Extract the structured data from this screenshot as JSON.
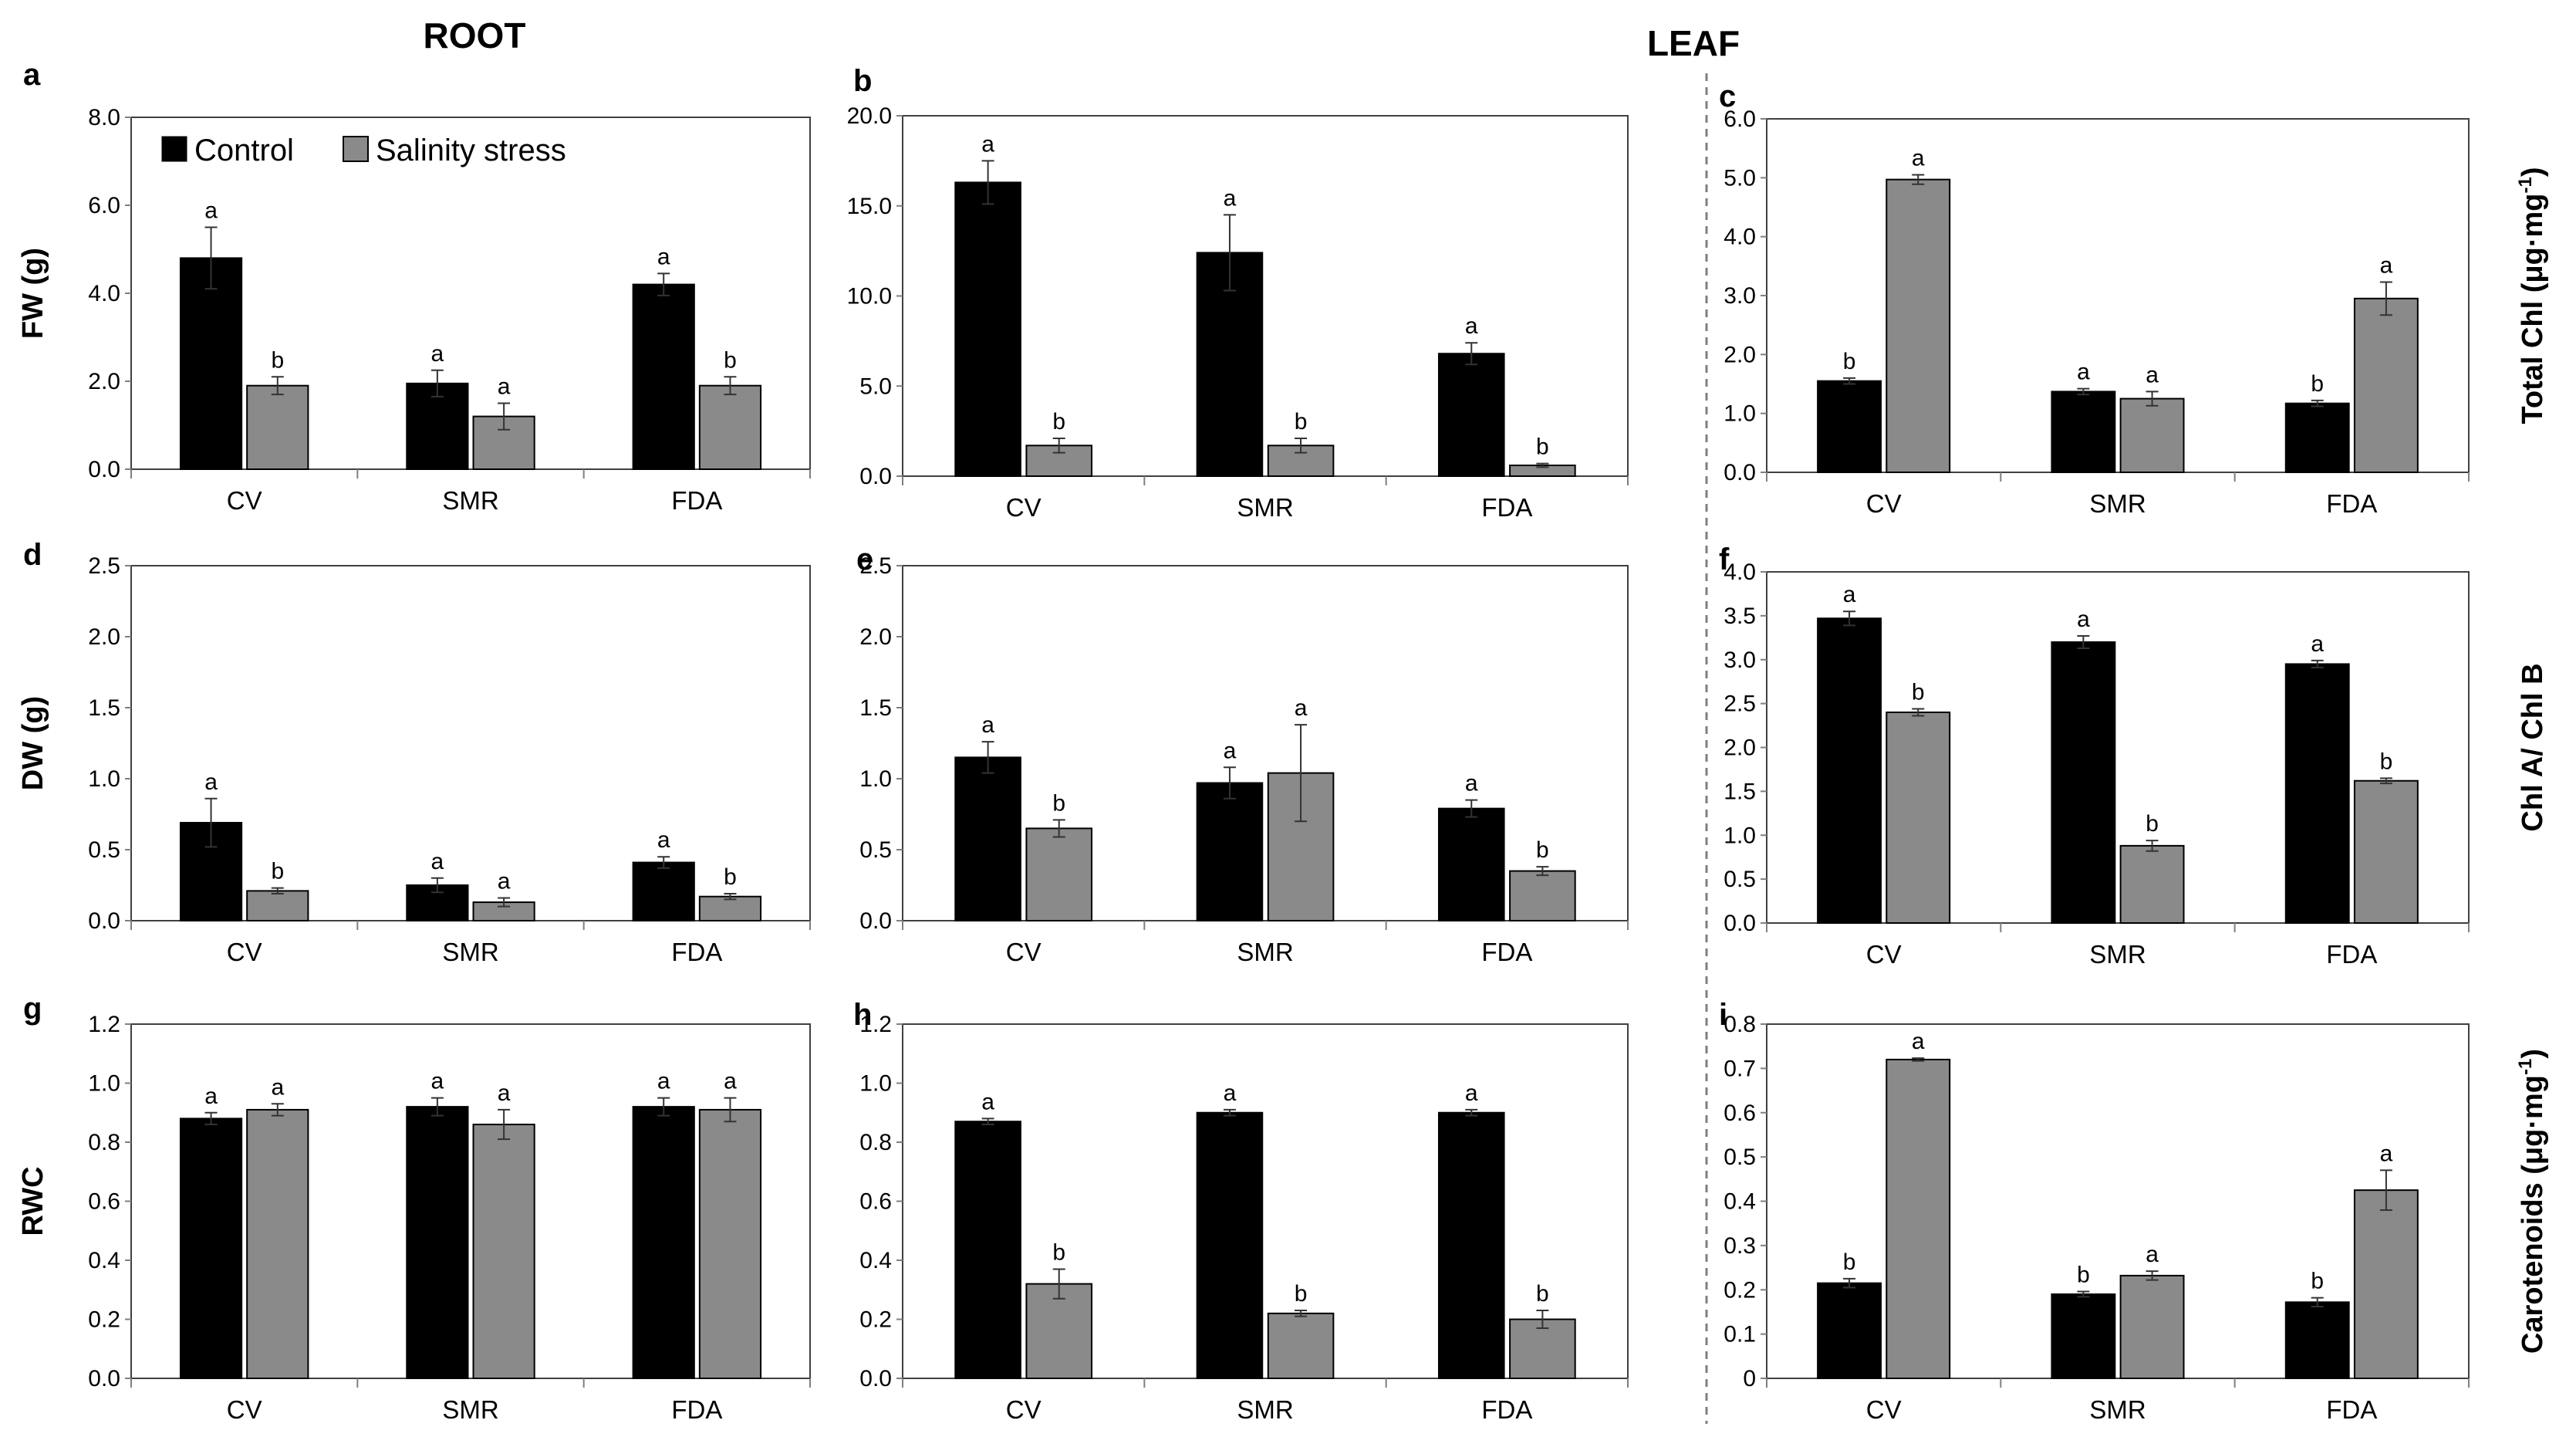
{
  "headers": {
    "root": "ROOT",
    "leaf": "LEAF"
  },
  "legend": {
    "control": "Control",
    "salinity": "Salinity stress"
  },
  "colors": {
    "control": "#000000",
    "salinity": "#8a8a8a",
    "axis": "#7f7f7f",
    "frame": "#404040"
  },
  "chart_data": [
    {
      "id": "a",
      "type": "bar",
      "letter": "a",
      "ylabel": "FW (g)",
      "ylabel_sup": "",
      "ylabel_side": "left",
      "ylim": [
        0,
        8
      ],
      "yticks": [
        "0.0",
        "2.0",
        "4.0",
        "6.0",
        "8.0"
      ],
      "categories": [
        "CV",
        "SMR",
        "FDA"
      ],
      "series": [
        {
          "name": "Control",
          "values": [
            4.8,
            1.95,
            4.2
          ],
          "errors": [
            0.7,
            0.3,
            0.25
          ],
          "sig": [
            "a",
            "a",
            "a"
          ]
        },
        {
          "name": "Salinity stress",
          "values": [
            1.9,
            1.2,
            1.9
          ],
          "errors": [
            0.2,
            0.3,
            0.2
          ],
          "sig": [
            "b",
            "a",
            "b"
          ]
        }
      ]
    },
    {
      "id": "b",
      "type": "bar",
      "letter": "b",
      "ylabel": "",
      "ylabel_sup": "",
      "ylabel_side": "left",
      "ylim": [
        0,
        20
      ],
      "yticks": [
        "0.0",
        "5.0",
        "10.0",
        "15.0",
        "20.0"
      ],
      "categories": [
        "CV",
        "SMR",
        "FDA"
      ],
      "series": [
        {
          "name": "Control",
          "values": [
            16.3,
            12.4,
            6.8
          ],
          "errors": [
            1.2,
            2.1,
            0.6
          ],
          "sig": [
            "a",
            "a",
            "a"
          ]
        },
        {
          "name": "Salinity stress",
          "values": [
            1.7,
            1.7,
            0.6
          ],
          "errors": [
            0.4,
            0.4,
            0.1
          ],
          "sig": [
            "b",
            "b",
            "b"
          ]
        }
      ]
    },
    {
      "id": "c",
      "type": "bar",
      "letter": "c",
      "ylabel": "Total Chl (μg·mg",
      "ylabel_sup": "-1",
      "ylabel_tail": ")",
      "ylabel_side": "right",
      "ylim": [
        0,
        6
      ],
      "yticks": [
        "0.0",
        "1.0",
        "2.0",
        "3.0",
        "4.0",
        "5.0",
        "6.0"
      ],
      "categories": [
        "CV",
        "SMR",
        "FDA"
      ],
      "series": [
        {
          "name": "Control",
          "values": [
            1.55,
            1.37,
            1.17
          ],
          "errors": [
            0.05,
            0.05,
            0.05
          ],
          "sig": [
            "b",
            "a",
            "b"
          ]
        },
        {
          "name": "Salinity stress",
          "values": [
            4.97,
            1.25,
            2.95
          ],
          "errors": [
            0.08,
            0.12,
            0.28
          ],
          "sig": [
            "a",
            "a",
            "a"
          ]
        }
      ]
    },
    {
      "id": "d",
      "type": "bar",
      "letter": "d",
      "ylabel": "DW (g)",
      "ylabel_sup": "",
      "ylabel_side": "left",
      "ylim": [
        0,
        2.5
      ],
      "yticks": [
        "0.0",
        "0.5",
        "1.0",
        "1.5",
        "2.0",
        "2.5"
      ],
      "categories": [
        "CV",
        "SMR",
        "FDA"
      ],
      "series": [
        {
          "name": "Control",
          "values": [
            0.69,
            0.25,
            0.41
          ],
          "errors": [
            0.17,
            0.05,
            0.04
          ],
          "sig": [
            "a",
            "a",
            "a"
          ]
        },
        {
          "name": "Salinity stress",
          "values": [
            0.21,
            0.13,
            0.17
          ],
          "errors": [
            0.02,
            0.03,
            0.02
          ],
          "sig": [
            "b",
            "a",
            "b"
          ]
        }
      ]
    },
    {
      "id": "e",
      "type": "bar",
      "letter": "e",
      "ylabel": "",
      "ylabel_sup": "",
      "ylabel_side": "left",
      "ylim": [
        0,
        2.5
      ],
      "yticks": [
        "0.0",
        "0.5",
        "1.0",
        "1.5",
        "2.0",
        "2.5"
      ],
      "categories": [
        "CV",
        "SMR",
        "FDA"
      ],
      "series": [
        {
          "name": "Control",
          "values": [
            1.15,
            0.97,
            0.79
          ],
          "errors": [
            0.11,
            0.11,
            0.06
          ],
          "sig": [
            "a",
            "a",
            "a"
          ]
        },
        {
          "name": "Salinity stress",
          "values": [
            0.65,
            1.04,
            0.35
          ],
          "errors": [
            0.06,
            0.34,
            0.03
          ],
          "sig": [
            "b",
            "a",
            "b"
          ]
        }
      ]
    },
    {
      "id": "f",
      "type": "bar",
      "letter": "f",
      "ylabel": "Chl A/ Chl B",
      "ylabel_sup": "",
      "ylabel_side": "right",
      "ylim": [
        0,
        4
      ],
      "yticks": [
        "0.0",
        "0.5",
        "1.0",
        "1.5",
        "2.0",
        "2.5",
        "3.0",
        "3.5",
        "4.0"
      ],
      "categories": [
        "CV",
        "SMR",
        "FDA"
      ],
      "series": [
        {
          "name": "Control",
          "values": [
            3.47,
            3.2,
            2.95
          ],
          "errors": [
            0.08,
            0.07,
            0.04
          ],
          "sig": [
            "a",
            "a",
            "a"
          ]
        },
        {
          "name": "Salinity stress",
          "values": [
            2.4,
            0.88,
            1.62
          ],
          "errors": [
            0.04,
            0.06,
            0.03
          ],
          "sig": [
            "b",
            "b",
            "b"
          ]
        }
      ]
    },
    {
      "id": "g",
      "type": "bar",
      "letter": "g",
      "ylabel": "RWC",
      "ylabel_sup": "",
      "ylabel_side": "left",
      "ylim": [
        0,
        1.2
      ],
      "yticks": [
        "0.0",
        "0.2",
        "0.4",
        "0.6",
        "0.8",
        "1.0",
        "1.2"
      ],
      "categories": [
        "CV",
        "SMR",
        "FDA"
      ],
      "series": [
        {
          "name": "Control",
          "values": [
            0.88,
            0.92,
            0.92
          ],
          "errors": [
            0.02,
            0.03,
            0.03
          ],
          "sig": [
            "a",
            "a",
            "a"
          ]
        },
        {
          "name": "Salinity stress",
          "values": [
            0.91,
            0.86,
            0.91
          ],
          "errors": [
            0.02,
            0.05,
            0.04
          ],
          "sig": [
            "a",
            "a",
            "a"
          ]
        }
      ]
    },
    {
      "id": "h",
      "type": "bar",
      "letter": "h",
      "ylabel": "",
      "ylabel_sup": "",
      "ylabel_side": "left",
      "ylim": [
        0,
        1.2
      ],
      "yticks": [
        "0.0",
        "0.2",
        "0.4",
        "0.6",
        "0.8",
        "1.0",
        "1.2"
      ],
      "categories": [
        "CV",
        "SMR",
        "FDA"
      ],
      "series": [
        {
          "name": "Control",
          "values": [
            0.87,
            0.9,
            0.9
          ],
          "errors": [
            0.01,
            0.01,
            0.01
          ],
          "sig": [
            "a",
            "a",
            "a"
          ]
        },
        {
          "name": "Salinity stress",
          "values": [
            0.32,
            0.22,
            0.2
          ],
          "errors": [
            0.05,
            0.01,
            0.03
          ],
          "sig": [
            "b",
            "b",
            "b"
          ]
        }
      ]
    },
    {
      "id": "i",
      "type": "bar",
      "letter": "i",
      "ylabel": "Carotenoids (μg·mg",
      "ylabel_sup": "-1",
      "ylabel_tail": ")",
      "ylabel_side": "right",
      "ylim": [
        0,
        0.8
      ],
      "yticks": [
        "0",
        "0.1",
        "0.2",
        "0.3",
        "0.4",
        "0.5",
        "0.6",
        "0.7",
        "0.8"
      ],
      "categories": [
        "CV",
        "SMR",
        "FDA"
      ],
      "series": [
        {
          "name": "Control",
          "values": [
            0.215,
            0.19,
            0.172
          ],
          "errors": [
            0.01,
            0.006,
            0.01
          ],
          "sig": [
            "b",
            "b",
            "b"
          ]
        },
        {
          "name": "Salinity stress",
          "values": [
            0.72,
            0.232,
            0.425
          ],
          "errors": [
            0.003,
            0.01,
            0.045
          ],
          "sig": [
            "a",
            "a",
            "a"
          ]
        }
      ]
    }
  ]
}
